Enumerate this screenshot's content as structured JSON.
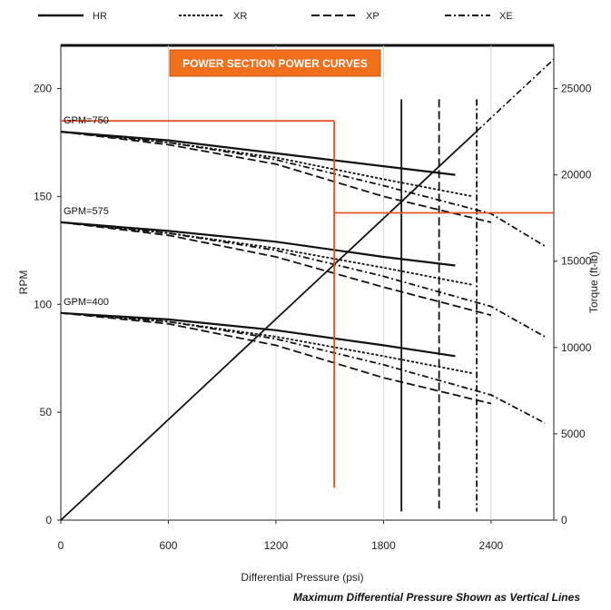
{
  "chart_data": {
    "type": "line",
    "title": "POWER SECTION POWER CURVES",
    "xlabel": "Differential Pressure (psi)",
    "ylabel": "RPM",
    "y2label": "Torque (ft-lb)",
    "xlim": [
      0,
      2750
    ],
    "ylim": [
      0,
      220
    ],
    "y2lim": [
      0,
      27500
    ],
    "xticks": [
      0,
      600,
      1200,
      1800,
      2400
    ],
    "yticks": [
      0,
      50,
      100,
      150,
      200
    ],
    "y2ticks": [
      0,
      5000,
      10000,
      15000,
      20000,
      25000
    ],
    "legend_position": "top",
    "grid": "vertical",
    "legend": [
      {
        "name": "HR",
        "style": "solid"
      },
      {
        "name": "XR",
        "style": "dotted"
      },
      {
        "name": "XP",
        "style": "dashed"
      },
      {
        "name": "XE",
        "style": "dash-dot"
      }
    ],
    "rpm_curves": [
      {
        "gpm_label": "GPM=750",
        "series": [
          {
            "name": "HR",
            "x": [
              0,
              600,
              1200,
              1800,
              2200
            ],
            "y": [
              180,
              176,
              170,
              164,
              160
            ]
          },
          {
            "name": "XR",
            "x": [
              0,
              600,
              1200,
              1800,
              2300
            ],
            "y": [
              180,
              175,
              168,
              158,
              150
            ]
          },
          {
            "name": "XP",
            "x": [
              0,
              600,
              1200,
              1800,
              2400
            ],
            "y": [
              180,
              174,
              165,
              150,
              138
            ]
          },
          {
            "name": "XE",
            "x": [
              0,
              600,
              1200,
              1800,
              2400,
              2700
            ],
            "y": [
              180,
              175,
              167,
              155,
              142,
              127
            ]
          }
        ]
      },
      {
        "gpm_label": "GPM=575",
        "series": [
          {
            "name": "HR",
            "x": [
              0,
              600,
              1200,
              1800,
              2200
            ],
            "y": [
              138,
              134,
              129,
              122,
              118
            ]
          },
          {
            "name": "XR",
            "x": [
              0,
              600,
              1200,
              1800,
              2300
            ],
            "y": [
              138,
              133,
              126,
              117,
              109
            ]
          },
          {
            "name": "XP",
            "x": [
              0,
              600,
              1200,
              1800,
              2400
            ],
            "y": [
              138,
              132,
              122,
              108,
              95
            ]
          },
          {
            "name": "XE",
            "x": [
              0,
              600,
              1200,
              1800,
              2400,
              2700
            ],
            "y": [
              138,
              133,
              125,
              113,
              99,
              85
            ]
          }
        ]
      },
      {
        "gpm_label": "GPM=400",
        "series": [
          {
            "name": "HR",
            "x": [
              0,
              600,
              1200,
              1800,
              2200
            ],
            "y": [
              96,
              93,
              88,
              81,
              76
            ]
          },
          {
            "name": "XR",
            "x": [
              0,
              600,
              1200,
              1800,
              2300
            ],
            "y": [
              96,
              92,
              85,
              76,
              68
            ]
          },
          {
            "name": "XP",
            "x": [
              0,
              600,
              1200,
              1800,
              2400
            ],
            "y": [
              96,
              91,
              81,
              66,
              54
            ]
          },
          {
            "name": "XE",
            "x": [
              0,
              600,
              1200,
              1800,
              2400,
              2700
            ],
            "y": [
              96,
              92,
              84,
              72,
              58,
              45
            ]
          }
        ]
      }
    ],
    "torque_line": {
      "x": [
        0,
        2750
      ],
      "y2": [
        0,
        26700
      ]
    },
    "max_differential_pressure": [
      {
        "name": "HR",
        "x": 1900
      },
      {
        "name": "XP",
        "x": 2110
      },
      {
        "name": "XE",
        "x": 2320
      }
    ],
    "reference_lines": {
      "rpm": 185,
      "pressure": 1525,
      "torque": 17800,
      "pressure_span_rpm": [
        15,
        185
      ],
      "torque_span_x": [
        1525,
        2750
      ],
      "rpm_span_x": [
        0,
        1525
      ]
    },
    "footnote": "Maximum Differential Pressure Shown as Vertical Lines"
  }
}
